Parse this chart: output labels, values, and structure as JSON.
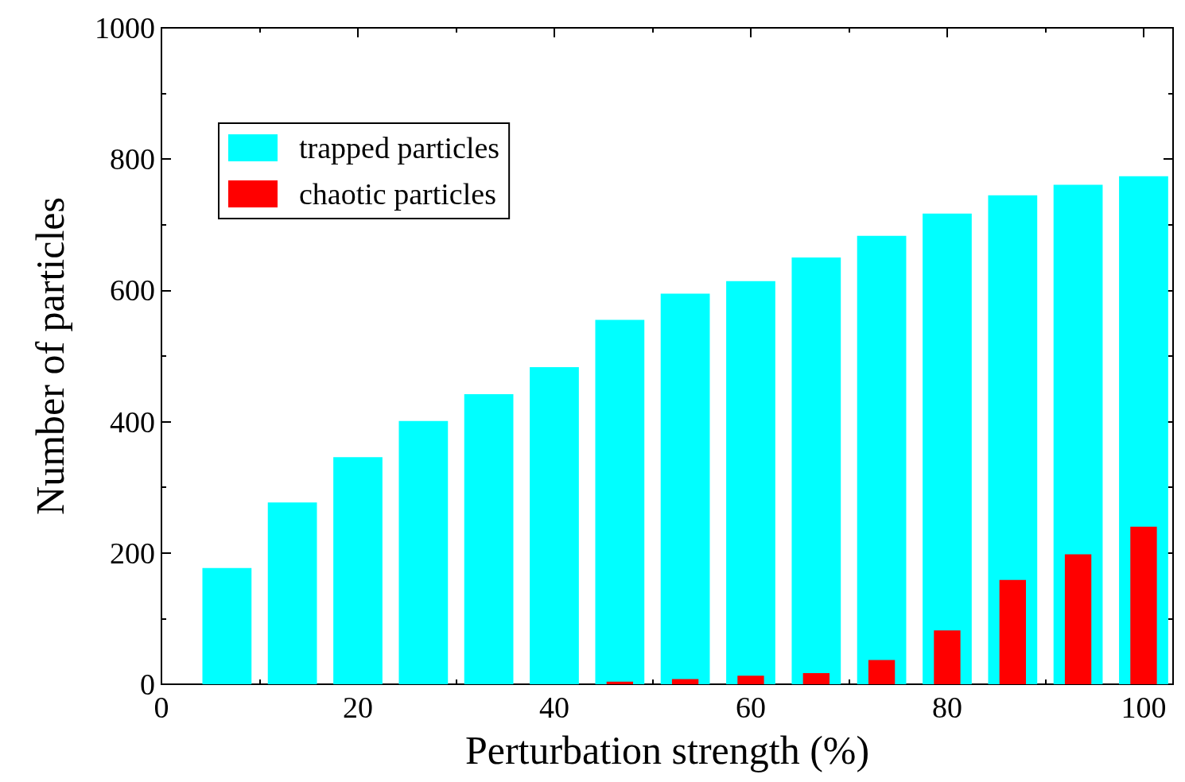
{
  "chart_data": {
    "type": "bar",
    "xlabel": "Perturbation strength (%)",
    "ylabel": "Number of particles",
    "x": [
      6.67,
      13.33,
      20,
      26.67,
      33.33,
      40,
      46.67,
      53.33,
      60,
      66.67,
      73.33,
      80,
      86.67,
      93.33,
      100
    ],
    "series": [
      {
        "name": "trapped particles",
        "color": "#00ffff",
        "values": [
          177,
          277,
          346,
          401,
          442,
          483,
          555,
          595,
          614,
          650,
          683,
          717,
          745,
          761,
          774
        ]
      },
      {
        "name": "chaotic particles",
        "color": "#ff0000",
        "values": [
          0,
          0,
          0,
          0,
          0,
          0,
          4,
          8,
          13,
          17,
          37,
          82,
          159,
          198,
          240
        ]
      }
    ],
    "xlim": [
      0,
      103
    ],
    "xticks": [
      0,
      20,
      40,
      60,
      80,
      100
    ],
    "ylim": [
      0,
      1000
    ],
    "yticks": [
      0,
      200,
      400,
      600,
      800,
      1000
    ],
    "grid": false,
    "legend": "top left"
  }
}
